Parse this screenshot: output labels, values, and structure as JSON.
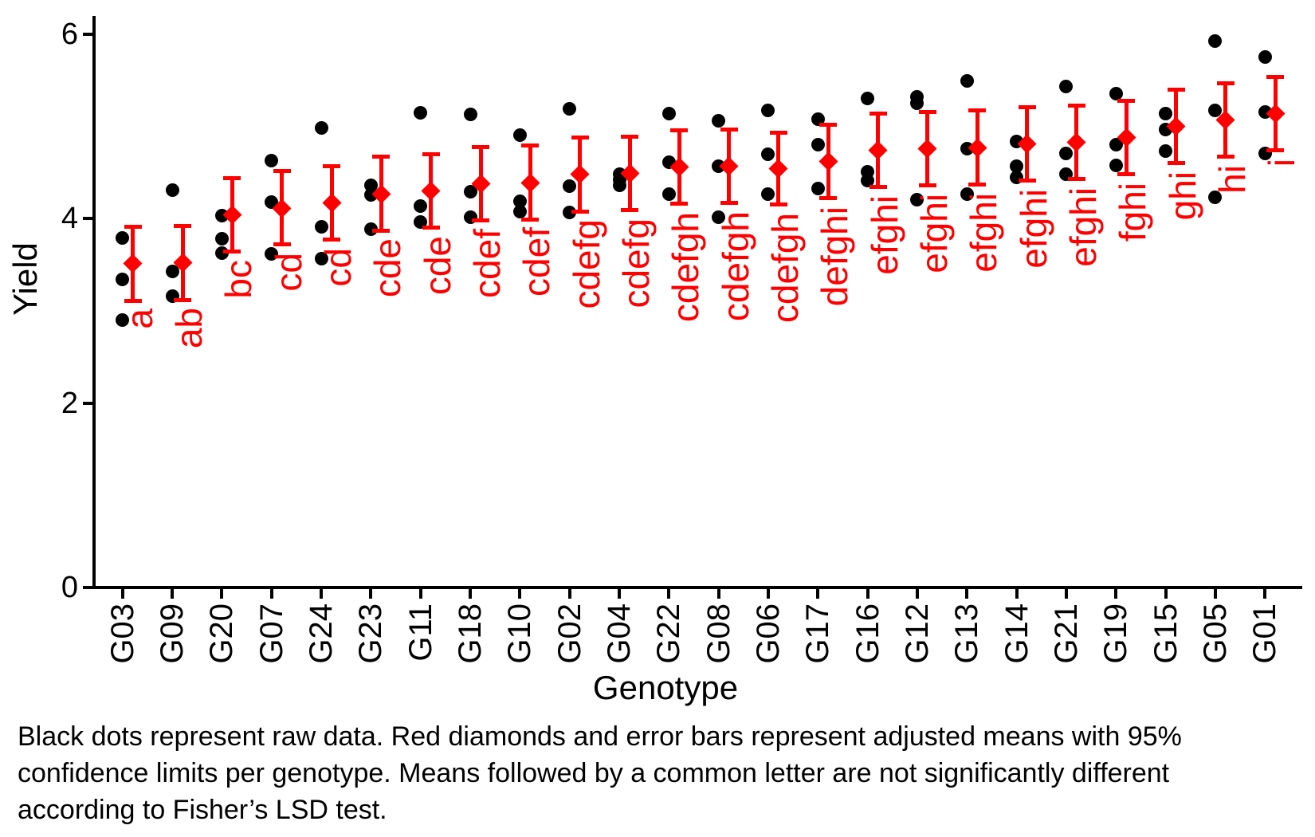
{
  "caption": {
    "line1": "Black dots represent raw data. Red diamonds and error bars represent adjusted means with 95%",
    "line2": "confidence limits per genotype. Means followed by a common letter are not significantly different",
    "line3": "according to Fisher’s LSD test."
  },
  "colors": {
    "raw_points": "#000000",
    "adjusted_means": "#FF0000",
    "axis": "#000000"
  },
  "chart_data": {
    "type": "scatter",
    "title": "",
    "xlabel": "Genotype",
    "ylabel": "Yield",
    "ylim": [
      0,
      6.2
    ],
    "yticks": [
      0,
      2,
      4,
      6
    ],
    "grid": "off",
    "legend": "none",
    "annotation_meaning": "red letters = Fisher LSD significance groups; error bars = 95% confidence limits of adjusted means",
    "categories": [
      "G03",
      "G09",
      "G20",
      "G07",
      "G24",
      "G23",
      "G11",
      "G18",
      "G10",
      "G02",
      "G04",
      "G22",
      "G08",
      "G06",
      "G17",
      "G16",
      "G12",
      "G13",
      "G14",
      "G21",
      "G19",
      "G15",
      "G05",
      "G01"
    ],
    "genotypes": [
      {
        "id": "G03",
        "letter": "a",
        "raw": [
          3.79,
          3.34,
          2.9
        ],
        "mean": 3.51,
        "ci_low": 3.11,
        "ci_high": 3.91
      },
      {
        "id": "G09",
        "letter": "ab",
        "raw": [
          4.31,
          3.43,
          3.16
        ],
        "mean": 3.52,
        "ci_low": 3.12,
        "ci_high": 3.92
      },
      {
        "id": "G20",
        "letter": "bc",
        "raw": [
          4.03,
          3.78,
          3.63
        ],
        "mean": 4.04,
        "ci_low": 3.64,
        "ci_high": 4.44
      },
      {
        "id": "G07",
        "letter": "cd",
        "raw": [
          4.63,
          4.18,
          3.62
        ],
        "mean": 4.11,
        "ci_low": 3.72,
        "ci_high": 4.52
      },
      {
        "id": "G24",
        "letter": "cd",
        "raw": [
          4.98,
          3.91,
          3.57
        ],
        "mean": 4.17,
        "ci_low": 3.77,
        "ci_high": 4.57
      },
      {
        "id": "G23",
        "letter": "cde",
        "raw": [
          4.36,
          4.26,
          3.89
        ],
        "mean": 4.27,
        "ci_low": 3.87,
        "ci_high": 4.67
      },
      {
        "id": "G11",
        "letter": "cde",
        "raw": [
          5.15,
          4.14,
          3.96
        ],
        "mean": 4.3,
        "ci_low": 3.9,
        "ci_high": 4.7
      },
      {
        "id": "G18",
        "letter": "cdef",
        "raw": [
          5.13,
          4.29,
          4.02
        ],
        "mean": 4.38,
        "ci_low": 3.98,
        "ci_high": 4.78
      },
      {
        "id": "G10",
        "letter": "cdef",
        "raw": [
          4.91,
          4.19,
          4.08
        ],
        "mean": 4.39,
        "ci_low": 3.99,
        "ci_high": 4.79
      },
      {
        "id": "G02",
        "letter": "cdefg",
        "raw": [
          5.19,
          4.35,
          4.07
        ],
        "mean": 4.48,
        "ci_low": 4.08,
        "ci_high": 4.88
      },
      {
        "id": "G04",
        "letter": "cdefg",
        "raw": [
          4.48,
          4.42,
          4.36
        ],
        "mean": 4.49,
        "ci_low": 4.09,
        "ci_high": 4.89
      },
      {
        "id": "G22",
        "letter": "cdefgh",
        "raw": [
          5.14,
          4.61,
          4.27
        ],
        "mean": 4.56,
        "ci_low": 4.16,
        "ci_high": 4.96
      },
      {
        "id": "G08",
        "letter": "cdefgh",
        "raw": [
          5.06,
          4.57,
          4.02
        ],
        "mean": 4.57,
        "ci_low": 4.17,
        "ci_high": 4.97
      },
      {
        "id": "G06",
        "letter": "cdefgh",
        "raw": [
          5.17,
          4.7,
          4.27
        ],
        "mean": 4.54,
        "ci_low": 4.15,
        "ci_high": 4.93
      },
      {
        "id": "G17",
        "letter": "defghi",
        "raw": [
          5.08,
          4.8,
          4.33
        ],
        "mean": 4.62,
        "ci_low": 4.22,
        "ci_high": 5.02
      },
      {
        "id": "G16",
        "letter": "efghi",
        "raw": [
          5.3,
          4.51,
          4.41
        ],
        "mean": 4.74,
        "ci_low": 4.34,
        "ci_high": 5.14
      },
      {
        "id": "G12",
        "letter": "efghi",
        "raw": [
          5.32,
          5.25,
          4.21
        ],
        "mean": 4.76,
        "ci_low": 4.36,
        "ci_high": 5.16
      },
      {
        "id": "G13",
        "letter": "efghi",
        "raw": [
          5.49,
          4.76,
          4.27
        ],
        "mean": 4.77,
        "ci_low": 4.37,
        "ci_high": 5.17
      },
      {
        "id": "G14",
        "letter": "efghi",
        "raw": [
          4.84,
          4.57,
          4.45
        ],
        "mean": 4.81,
        "ci_low": 4.41,
        "ci_high": 5.21
      },
      {
        "id": "G21",
        "letter": "efghi",
        "raw": [
          5.43,
          4.71,
          4.48
        ],
        "mean": 4.83,
        "ci_low": 4.43,
        "ci_high": 5.23
      },
      {
        "id": "G19",
        "letter": "fghi",
        "raw": [
          5.36,
          4.8,
          4.58
        ],
        "mean": 4.88,
        "ci_low": 4.48,
        "ci_high": 5.28
      },
      {
        "id": "G15",
        "letter": "ghi",
        "raw": [
          5.14,
          4.97,
          4.73
        ],
        "mean": 5.0,
        "ci_low": 4.6,
        "ci_high": 5.4
      },
      {
        "id": "G05",
        "letter": "hi",
        "raw": [
          5.93,
          5.17,
          4.23
        ],
        "mean": 5.07,
        "ci_low": 4.67,
        "ci_high": 5.47
      },
      {
        "id": "G01",
        "letter": "i",
        "raw": [
          5.75,
          5.16,
          4.71
        ],
        "mean": 5.14,
        "ci_low": 4.74,
        "ci_high": 5.54
      }
    ]
  }
}
